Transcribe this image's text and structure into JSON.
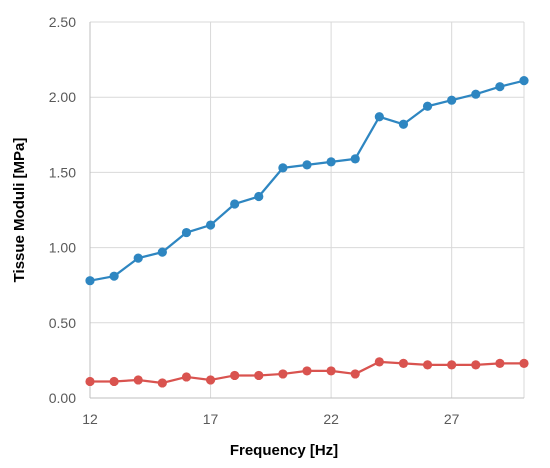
{
  "chart_data": {
    "type": "line",
    "title": "",
    "xlabel": "Frequency [Hz]",
    "ylabel": "Tissue Moduli [MPa]",
    "xlim": [
      12,
      30
    ],
    "ylim": [
      0,
      2.5
    ],
    "x_ticks": [
      12,
      17,
      22,
      27
    ],
    "x_tick_labels": [
      "12",
      "17",
      "22",
      "27"
    ],
    "y_ticks": [
      0,
      0.5,
      1.0,
      1.5,
      2.0,
      2.5
    ],
    "y_tick_labels": [
      "0.00",
      "0.50",
      "1.00",
      "1.50",
      "2.00",
      "2.50"
    ],
    "grid": "on",
    "legend": "none",
    "x": [
      12,
      13,
      14,
      15,
      16,
      17,
      18,
      19,
      20,
      21,
      22,
      23,
      24,
      25,
      26,
      27,
      28,
      29,
      30
    ],
    "series": [
      {
        "color": "#2E86C1",
        "values": [
          0.78,
          0.81,
          0.93,
          0.97,
          1.1,
          1.15,
          1.29,
          1.34,
          1.53,
          1.55,
          1.57,
          1.59,
          1.87,
          1.82,
          1.94,
          1.98,
          2.02,
          2.07,
          2.11
        ]
      },
      {
        "color": "#D9534F",
        "values": [
          0.11,
          0.11,
          0.12,
          0.1,
          0.14,
          0.12,
          0.15,
          0.15,
          0.16,
          0.18,
          0.18,
          0.16,
          0.24,
          0.23,
          0.22,
          0.22,
          0.22,
          0.23,
          0.23
        ]
      }
    ]
  }
}
